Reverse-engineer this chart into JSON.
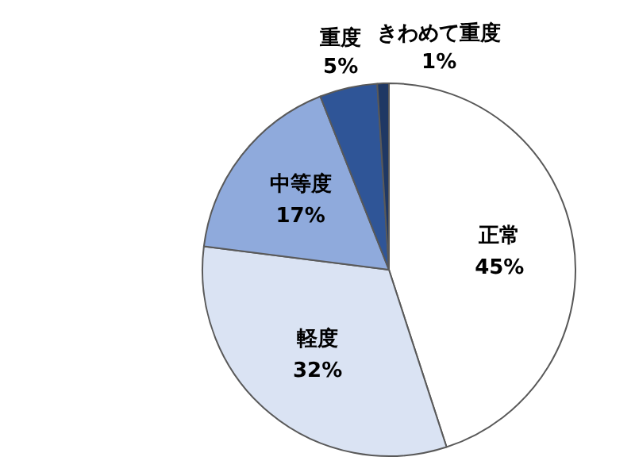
{
  "chart_data": {
    "type": "pie",
    "categories": [
      "正常",
      "軽度",
      "中等度",
      "重度",
      "きわめて重度"
    ],
    "values": [
      45,
      32,
      17,
      5,
      1
    ],
    "colors": [
      "#ffffff",
      "#dae3f3",
      "#8faadc",
      "#2f5597",
      "#1f3864"
    ],
    "value_labels": [
      "45%",
      "32%",
      "17%",
      "5%",
      "1%"
    ],
    "legend": false
  }
}
